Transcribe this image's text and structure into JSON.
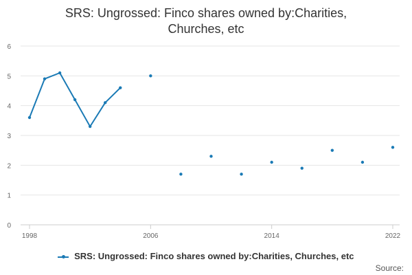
{
  "title_lines": [
    "SRS: Ungrossed: Finco shares owned by:Charities,",
    "Churches, etc"
  ],
  "legend_label": "SRS: Ungrossed: Finco shares owned by:Charities, Churches, etc",
  "source_label": "Source:",
  "colors": {
    "series": "#1a7ab5",
    "grid": "#e6e6e6",
    "axis": "#cccccc"
  },
  "chart_data": {
    "type": "line",
    "title": "SRS: Ungrossed: Finco shares owned by:Charities, Churches, etc",
    "xlabel": "",
    "ylabel": "",
    "x_ticks": [
      "1998",
      "2006",
      "2014",
      "2022"
    ],
    "y_ticks": [
      "0",
      "1",
      "2",
      "3",
      "4",
      "5",
      "6"
    ],
    "xlim": [
      1998,
      2022
    ],
    "ylim": [
      0,
      6
    ],
    "grid": true,
    "legend_position": "bottom",
    "series": [
      {
        "name": "SRS: Ungrossed: Finco shares owned by:Charities, Churches, etc",
        "x": [
          1998,
          1999,
          2000,
          2001,
          2002,
          2003,
          2004,
          2006,
          2008,
          2010,
          2012,
          2014,
          2016,
          2018,
          2020,
          2022
        ],
        "y": [
          3.6,
          4.9,
          5.1,
          4.2,
          3.3,
          4.1,
          4.6,
          5.0,
          1.7,
          2.3,
          1.7,
          2.1,
          1.9,
          2.5,
          2.1,
          2.6
        ]
      }
    ]
  }
}
